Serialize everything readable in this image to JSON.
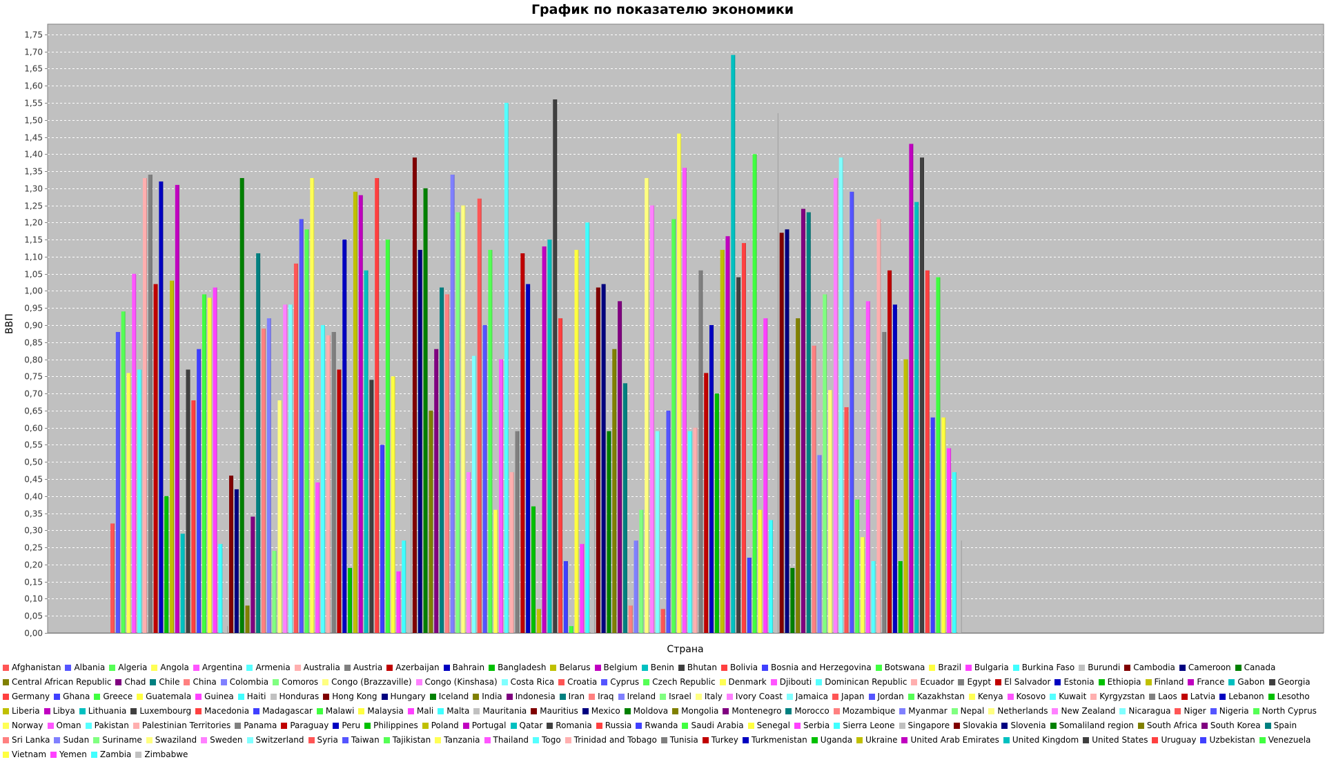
{
  "chart_data": {
    "type": "bar",
    "title": "График по показателю экономики",
    "xlabel": "Страна",
    "ylabel": "ВВП",
    "ylim": [
      0,
      1.78
    ],
    "yticks": [
      "0,00",
      "0,05",
      "0,10",
      "0,15",
      "0,20",
      "0,25",
      "0,30",
      "0,35",
      "0,40",
      "0,45",
      "0,50",
      "0,55",
      "0,60",
      "0,65",
      "0,70",
      "0,75",
      "0,80",
      "0,85",
      "0,90",
      "0,95",
      "1,00",
      "1,05",
      "1,10",
      "1,15",
      "1,20",
      "1,25",
      "1,30",
      "1,35",
      "1,40",
      "1,45",
      "1,50",
      "1,55",
      "1,60",
      "1,65",
      "1,70",
      "1,75"
    ],
    "grid": true,
    "legend_position": "bottom",
    "series": [
      {
        "name": "Afghanistan",
        "value": 0.32,
        "color": "#ff5555"
      },
      {
        "name": "Albania",
        "value": 0.88,
        "color": "#5555ff"
      },
      {
        "name": "Algeria",
        "value": 0.94,
        "color": "#55ff55"
      },
      {
        "name": "Angola",
        "value": 0.76,
        "color": "#ffff55"
      },
      {
        "name": "Argentina",
        "value": 1.05,
        "color": "#ff55ff"
      },
      {
        "name": "Armenia",
        "value": 0.77,
        "color": "#55ffff"
      },
      {
        "name": "Australia",
        "value": 1.33,
        "color": "#ffafaf"
      },
      {
        "name": "Austria",
        "value": 1.34,
        "color": "#808080"
      },
      {
        "name": "Azerbaijan",
        "value": 1.02,
        "color": "#c00000"
      },
      {
        "name": "Bahrain",
        "value": 1.32,
        "color": "#0000c0"
      },
      {
        "name": "Bangladesh",
        "value": 0.4,
        "color": "#00c000"
      },
      {
        "name": "Belarus",
        "value": 1.03,
        "color": "#c0c000"
      },
      {
        "name": "Belgium",
        "value": 1.31,
        "color": "#c000c0"
      },
      {
        "name": "Benin",
        "value": 0.29,
        "color": "#00c0c0"
      },
      {
        "name": "Bhutan",
        "value": 0.77,
        "color": "#404040"
      },
      {
        "name": "Bolivia",
        "value": 0.68,
        "color": "#ff4040"
      },
      {
        "name": "Bosnia and Herzegovina",
        "value": 0.83,
        "color": "#4040ff"
      },
      {
        "name": "Botswana",
        "value": 0.99,
        "color": "#40ff40"
      },
      {
        "name": "Brazil",
        "value": 0.98,
        "color": "#ffff40"
      },
      {
        "name": "Bulgaria",
        "value": 1.01,
        "color": "#ff40ff"
      },
      {
        "name": "Burkina Faso",
        "value": 0.26,
        "color": "#40ffff"
      },
      {
        "name": "Burundi",
        "value": 0.02,
        "color": "#c0c0c0"
      },
      {
        "name": "Cambodia",
        "value": 0.46,
        "color": "#800000"
      },
      {
        "name": "Cameroon",
        "value": 0.42,
        "color": "#000080"
      },
      {
        "name": "Canada",
        "value": 1.33,
        "color": "#008000"
      },
      {
        "name": "Central African Republic",
        "value": 0.08,
        "color": "#808000"
      },
      {
        "name": "Chad",
        "value": 0.34,
        "color": "#800080"
      },
      {
        "name": "Chile",
        "value": 1.11,
        "color": "#008080"
      },
      {
        "name": "China",
        "value": 0.89,
        "color": "#ff8080"
      },
      {
        "name": "Colombia",
        "value": 0.92,
        "color": "#8080ff"
      },
      {
        "name": "Comoros",
        "value": 0.24,
        "color": "#80ff80"
      },
      {
        "name": "Congo (Brazzaville)",
        "value": 0.68,
        "color": "#ffff80"
      },
      {
        "name": "Congo (Kinshasa)",
        "value": 0.96,
        "color": "#ff80ff"
      },
      {
        "name": "Costa Rica",
        "value": 0.96,
        "color": "#80ffff"
      },
      {
        "name": "Croatia",
        "value": 1.08,
        "color": "#ff5555"
      },
      {
        "name": "Cyprus",
        "value": 1.21,
        "color": "#5555ff"
      },
      {
        "name": "Czech Republic",
        "value": 1.18,
        "color": "#55ff55"
      },
      {
        "name": "Denmark",
        "value": 1.33,
        "color": "#ffff55"
      },
      {
        "name": "Djibouti",
        "value": 0.44,
        "color": "#ff55ff"
      },
      {
        "name": "Dominican Republic",
        "value": 0.9,
        "color": "#55ffff"
      },
      {
        "name": "Ecuador",
        "value": 0.87,
        "color": "#ffafaf"
      },
      {
        "name": "Egypt",
        "value": 0.88,
        "color": "#808080"
      },
      {
        "name": "El Salvador",
        "value": 0.77,
        "color": "#c00000"
      },
      {
        "name": "Estonia",
        "value": 1.15,
        "color": "#0000c0"
      },
      {
        "name": "Ethiopia",
        "value": 0.19,
        "color": "#00c000"
      },
      {
        "name": "Finland",
        "value": 1.29,
        "color": "#c0c000"
      },
      {
        "name": "France",
        "value": 1.28,
        "color": "#c000c0"
      },
      {
        "name": "Gabon",
        "value": 1.06,
        "color": "#00c0c0"
      },
      {
        "name": "Georgia",
        "value": 0.74,
        "color": "#404040"
      },
      {
        "name": "Germany",
        "value": 1.33,
        "color": "#ff4040"
      },
      {
        "name": "Ghana",
        "value": 0.55,
        "color": "#4040ff"
      },
      {
        "name": "Greece",
        "value": 1.15,
        "color": "#40ff40"
      },
      {
        "name": "Guatemala",
        "value": 0.75,
        "color": "#ffff40"
      },
      {
        "name": "Guinea",
        "value": 0.18,
        "color": "#ff40ff"
      },
      {
        "name": "Haiti",
        "value": 0.27,
        "color": "#40ffff"
      },
      {
        "name": "Honduras",
        "value": 0.6,
        "color": "#c0c0c0"
      },
      {
        "name": "Hong Kong",
        "value": 1.39,
        "color": "#800000"
      },
      {
        "name": "Hungary",
        "value": 1.12,
        "color": "#000080"
      },
      {
        "name": "Iceland",
        "value": 1.3,
        "color": "#008000"
      },
      {
        "name": "India",
        "value": 0.65,
        "color": "#808000"
      },
      {
        "name": "Indonesia",
        "value": 0.83,
        "color": "#800080"
      },
      {
        "name": "Iran",
        "value": 1.01,
        "color": "#008080"
      },
      {
        "name": "Iraq",
        "value": 0.99,
        "color": "#ff8080"
      },
      {
        "name": "Ireland",
        "value": 1.34,
        "color": "#8080ff"
      },
      {
        "name": "Israel",
        "value": 1.23,
        "color": "#80ff80"
      },
      {
        "name": "Italy",
        "value": 1.25,
        "color": "#ffff80"
      },
      {
        "name": "Ivory Coast",
        "value": 0.47,
        "color": "#ff80ff"
      },
      {
        "name": "Jamaica",
        "value": 0.81,
        "color": "#80ffff"
      },
      {
        "name": "Japan",
        "value": 1.27,
        "color": "#ff5555"
      },
      {
        "name": "Jordan",
        "value": 0.9,
        "color": "#5555ff"
      },
      {
        "name": "Kazakhstan",
        "value": 1.12,
        "color": "#55ff55"
      },
      {
        "name": "Kenya",
        "value": 0.36,
        "color": "#ffff55"
      },
      {
        "name": "Kosovo",
        "value": 0.8,
        "color": "#ff55ff"
      },
      {
        "name": "Kuwait",
        "value": 1.55,
        "color": "#55ffff"
      },
      {
        "name": "Kyrgyzstan",
        "value": 0.47,
        "color": "#ffafaf"
      },
      {
        "name": "Laos",
        "value": 0.59,
        "color": "#808080"
      },
      {
        "name": "Latvia",
        "value": 1.11,
        "color": "#c00000"
      },
      {
        "name": "Lebanon",
        "value": 1.02,
        "color": "#0000c0"
      },
      {
        "name": "Lesotho",
        "value": 0.37,
        "color": "#00c000"
      },
      {
        "name": "Liberia",
        "value": 0.07,
        "color": "#c0c000"
      },
      {
        "name": "Libya",
        "value": 1.13,
        "color": "#c000c0"
      },
      {
        "name": "Lithuania",
        "value": 1.15,
        "color": "#00c0c0"
      },
      {
        "name": "Luxembourg",
        "value": 1.56,
        "color": "#404040"
      },
      {
        "name": "Macedonia",
        "value": 0.92,
        "color": "#ff4040"
      },
      {
        "name": "Madagascar",
        "value": 0.21,
        "color": "#4040ff"
      },
      {
        "name": "Malawi",
        "value": 0.02,
        "color": "#40ff40"
      },
      {
        "name": "Malaysia",
        "value": 1.12,
        "color": "#ffff40"
      },
      {
        "name": "Mali",
        "value": 0.26,
        "color": "#ff40ff"
      },
      {
        "name": "Malta",
        "value": 1.2,
        "color": "#40ffff"
      },
      {
        "name": "Mauritania",
        "value": 0.45,
        "color": "#c0c0c0"
      },
      {
        "name": "Mauritius",
        "value": 1.01,
        "color": "#800000"
      },
      {
        "name": "Mexico",
        "value": 1.02,
        "color": "#000080"
      },
      {
        "name": "Moldova",
        "value": 0.59,
        "color": "#008000"
      },
      {
        "name": "Mongolia",
        "value": 0.83,
        "color": "#808000"
      },
      {
        "name": "Montenegro",
        "value": 0.97,
        "color": "#800080"
      },
      {
        "name": "Morocco",
        "value": 0.73,
        "color": "#008080"
      },
      {
        "name": "Mozambique",
        "value": 0.08,
        "color": "#ff8080"
      },
      {
        "name": "Myanmar",
        "value": 0.27,
        "color": "#8080ff"
      },
      {
        "name": "Nepal",
        "value": 0.36,
        "color": "#80ff80"
      },
      {
        "name": "Netherlands",
        "value": 1.33,
        "color": "#ffff80"
      },
      {
        "name": "New Zealand",
        "value": 1.25,
        "color": "#ff80ff"
      },
      {
        "name": "Nicaragua",
        "value": 0.59,
        "color": "#80ffff"
      },
      {
        "name": "Niger",
        "value": 0.07,
        "color": "#ff5555"
      },
      {
        "name": "Nigeria",
        "value": 0.65,
        "color": "#5555ff"
      },
      {
        "name": "North Cyprus",
        "value": 1.21,
        "color": "#55ff55"
      },
      {
        "name": "Norway",
        "value": 1.46,
        "color": "#ffff55"
      },
      {
        "name": "Oman",
        "value": 1.36,
        "color": "#ff55ff"
      },
      {
        "name": "Pakistan",
        "value": 0.59,
        "color": "#55ffff"
      },
      {
        "name": "Palestinian Territories",
        "value": 0.6,
        "color": "#ffafaf"
      },
      {
        "name": "Panama",
        "value": 1.06,
        "color": "#808080"
      },
      {
        "name": "Paraguay",
        "value": 0.76,
        "color": "#c00000"
      },
      {
        "name": "Peru",
        "value": 0.9,
        "color": "#0000c0"
      },
      {
        "name": "Philippines",
        "value": 0.7,
        "color": "#00c000"
      },
      {
        "name": "Poland",
        "value": 1.12,
        "color": "#c0c000"
      },
      {
        "name": "Portugal",
        "value": 1.16,
        "color": "#c000c0"
      },
      {
        "name": "Qatar",
        "value": 1.69,
        "color": "#00c0c0"
      },
      {
        "name": "Romania",
        "value": 1.04,
        "color": "#404040"
      },
      {
        "name": "Russia",
        "value": 1.14,
        "color": "#ff4040"
      },
      {
        "name": "Rwanda",
        "value": 0.22,
        "color": "#4040ff"
      },
      {
        "name": "Saudi Arabia",
        "value": 1.4,
        "color": "#40ff40"
      },
      {
        "name": "Senegal",
        "value": 0.36,
        "color": "#ffff40"
      },
      {
        "name": "Serbia",
        "value": 0.92,
        "color": "#ff40ff"
      },
      {
        "name": "Sierra Leone",
        "value": 0.33,
        "color": "#40ffff"
      },
      {
        "name": "Singapore",
        "value": 1.52,
        "color": "#c0c0c0"
      },
      {
        "name": "Slovakia",
        "value": 1.17,
        "color": "#800000"
      },
      {
        "name": "Slovenia",
        "value": 1.18,
        "color": "#000080"
      },
      {
        "name": "Somaliland region",
        "value": 0.19,
        "color": "#008000"
      },
      {
        "name": "South Africa",
        "value": 0.92,
        "color": "#808000"
      },
      {
        "name": "South Korea",
        "value": 1.24,
        "color": "#800080"
      },
      {
        "name": "Spain",
        "value": 1.23,
        "color": "#008080"
      },
      {
        "name": "Sri Lanka",
        "value": 0.84,
        "color": "#ff8080"
      },
      {
        "name": "Sudan",
        "value": 0.52,
        "color": "#8080ff"
      },
      {
        "name": "Suriname",
        "value": 0.99,
        "color": "#80ff80"
      },
      {
        "name": "Swaziland",
        "value": 0.71,
        "color": "#ffff80"
      },
      {
        "name": "Sweden",
        "value": 1.33,
        "color": "#ff80ff"
      },
      {
        "name": "Switzerland",
        "value": 1.39,
        "color": "#80ffff"
      },
      {
        "name": "Syria",
        "value": 0.66,
        "color": "#ff5555"
      },
      {
        "name": "Taiwan",
        "value": 1.29,
        "color": "#5555ff"
      },
      {
        "name": "Tajikistan",
        "value": 0.39,
        "color": "#55ff55"
      },
      {
        "name": "Tanzania",
        "value": 0.28,
        "color": "#ffff55"
      },
      {
        "name": "Thailand",
        "value": 0.97,
        "color": "#ff55ff"
      },
      {
        "name": "Togo",
        "value": 0.21,
        "color": "#55ffff"
      },
      {
        "name": "Trinidad and Tobago",
        "value": 1.21,
        "color": "#ffafaf"
      },
      {
        "name": "Tunisia",
        "value": 0.88,
        "color": "#808080"
      },
      {
        "name": "Turkey",
        "value": 1.06,
        "color": "#c00000"
      },
      {
        "name": "Turkmenistan",
        "value": 0.96,
        "color": "#0000c0"
      },
      {
        "name": "Uganda",
        "value": 0.21,
        "color": "#00c000"
      },
      {
        "name": "Ukraine",
        "value": 0.8,
        "color": "#c0c000"
      },
      {
        "name": "United Arab Emirates",
        "value": 1.43,
        "color": "#c000c0"
      },
      {
        "name": "United Kingdom",
        "value": 1.26,
        "color": "#00c0c0"
      },
      {
        "name": "United States",
        "value": 1.39,
        "color": "#404040"
      },
      {
        "name": "Uruguay",
        "value": 1.06,
        "color": "#ff4040"
      },
      {
        "name": "Uzbekistan",
        "value": 0.63,
        "color": "#4040ff"
      },
      {
        "name": "Venezuela",
        "value": 1.04,
        "color": "#40ff40"
      },
      {
        "name": "Vietnam",
        "value": 0.63,
        "color": "#ffff40"
      },
      {
        "name": "Yemen",
        "value": 0.54,
        "color": "#ff40ff"
      },
      {
        "name": "Zambia",
        "value": 0.47,
        "color": "#40ffff"
      },
      {
        "name": "Zimbabwe",
        "value": 0.27,
        "color": "#c0c0c0"
      }
    ]
  }
}
